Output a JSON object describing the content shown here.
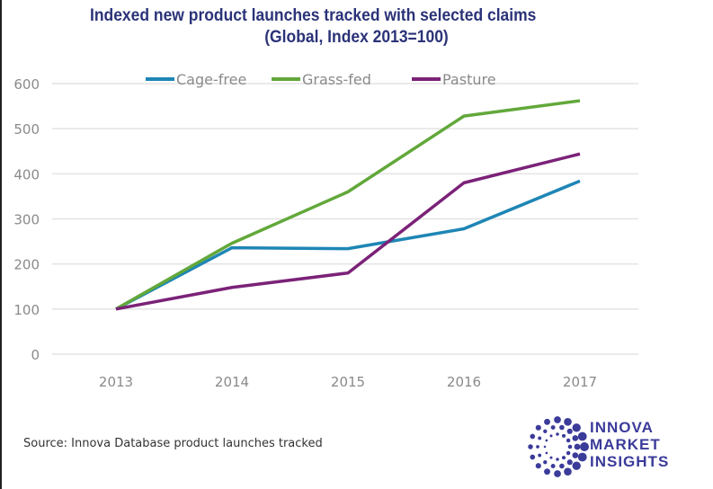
{
  "chart_data": {
    "type": "line",
    "title": "Indexed new product launches tracked with selected claims",
    "subtitle": "(Global, Index 2013=100)",
    "xlabel": "",
    "ylabel": "",
    "categories": [
      "2013",
      "2014",
      "2015",
      "2016",
      "2017"
    ],
    "ylim": [
      0,
      600
    ],
    "yticks": [
      0,
      100,
      200,
      300,
      400,
      500,
      600
    ],
    "grid": true,
    "legend_position": "top",
    "series": [
      {
        "name": "Cage-free",
        "color": "#1f86b5",
        "values": [
          100,
          236,
          234,
          278,
          384
        ]
      },
      {
        "name": "Grass-fed",
        "color": "#62a83a",
        "values": [
          100,
          246,
          360,
          528,
          562
        ]
      },
      {
        "name": "Pasture",
        "color": "#7b2278",
        "values": [
          100,
          148,
          180,
          380,
          444
        ]
      }
    ]
  },
  "source": "Source: Innova Database product launches tracked",
  "logo": {
    "lines": [
      "INNOVA",
      "MARKET",
      "INSIGHTS"
    ],
    "color": "#3b3b9a"
  }
}
